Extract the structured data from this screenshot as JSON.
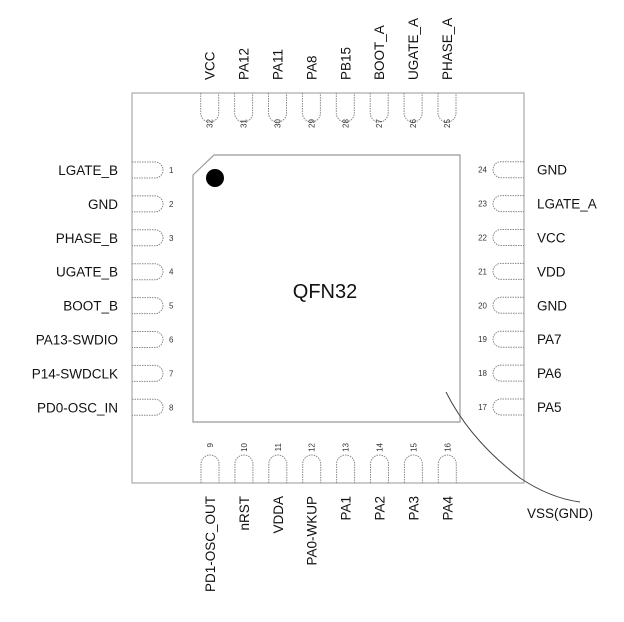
{
  "package": {
    "name": "QFN32",
    "exposed_pad_label": "VSS(GND)",
    "pins": {
      "left": [
        {
          "num": "1",
          "name": "LGATE_B"
        },
        {
          "num": "2",
          "name": "GND"
        },
        {
          "num": "3",
          "name": "PHASE_B"
        },
        {
          "num": "4",
          "name": "UGATE_B"
        },
        {
          "num": "5",
          "name": "BOOT_B"
        },
        {
          "num": "6",
          "name": "PA13-SWDIO"
        },
        {
          "num": "7",
          "name": "P14-SWDCLK"
        },
        {
          "num": "8",
          "name": "PD0-OSC_IN"
        }
      ],
      "bottom": [
        {
          "num": "9",
          "name": "PD1-OSC_OUT"
        },
        {
          "num": "10",
          "name": "nRST"
        },
        {
          "num": "11",
          "name": "VDDA"
        },
        {
          "num": "12",
          "name": "PA0-WKUP"
        },
        {
          "num": "13",
          "name": "PA1"
        },
        {
          "num": "14",
          "name": "PA2"
        },
        {
          "num": "15",
          "name": "PA3"
        },
        {
          "num": "16",
          "name": "PA4"
        }
      ],
      "right": [
        {
          "num": "17",
          "name": "PA5"
        },
        {
          "num": "18",
          "name": "PA6"
        },
        {
          "num": "19",
          "name": "PA7"
        },
        {
          "num": "20",
          "name": "GND"
        },
        {
          "num": "21",
          "name": "VDD"
        },
        {
          "num": "22",
          "name": "VCC"
        },
        {
          "num": "23",
          "name": "LGATE_A"
        },
        {
          "num": "24",
          "name": "GND"
        }
      ],
      "top": [
        {
          "num": "25",
          "name": "PHASE_A"
        },
        {
          "num": "26",
          "name": "UGATE_A"
        },
        {
          "num": "27",
          "name": "BOOT_A"
        },
        {
          "num": "28",
          "name": "PB15"
        },
        {
          "num": "29",
          "name": "PA8"
        },
        {
          "num": "30",
          "name": "PA11"
        },
        {
          "num": "31",
          "name": "PA12"
        },
        {
          "num": "32",
          "name": "VCC"
        }
      ]
    }
  }
}
